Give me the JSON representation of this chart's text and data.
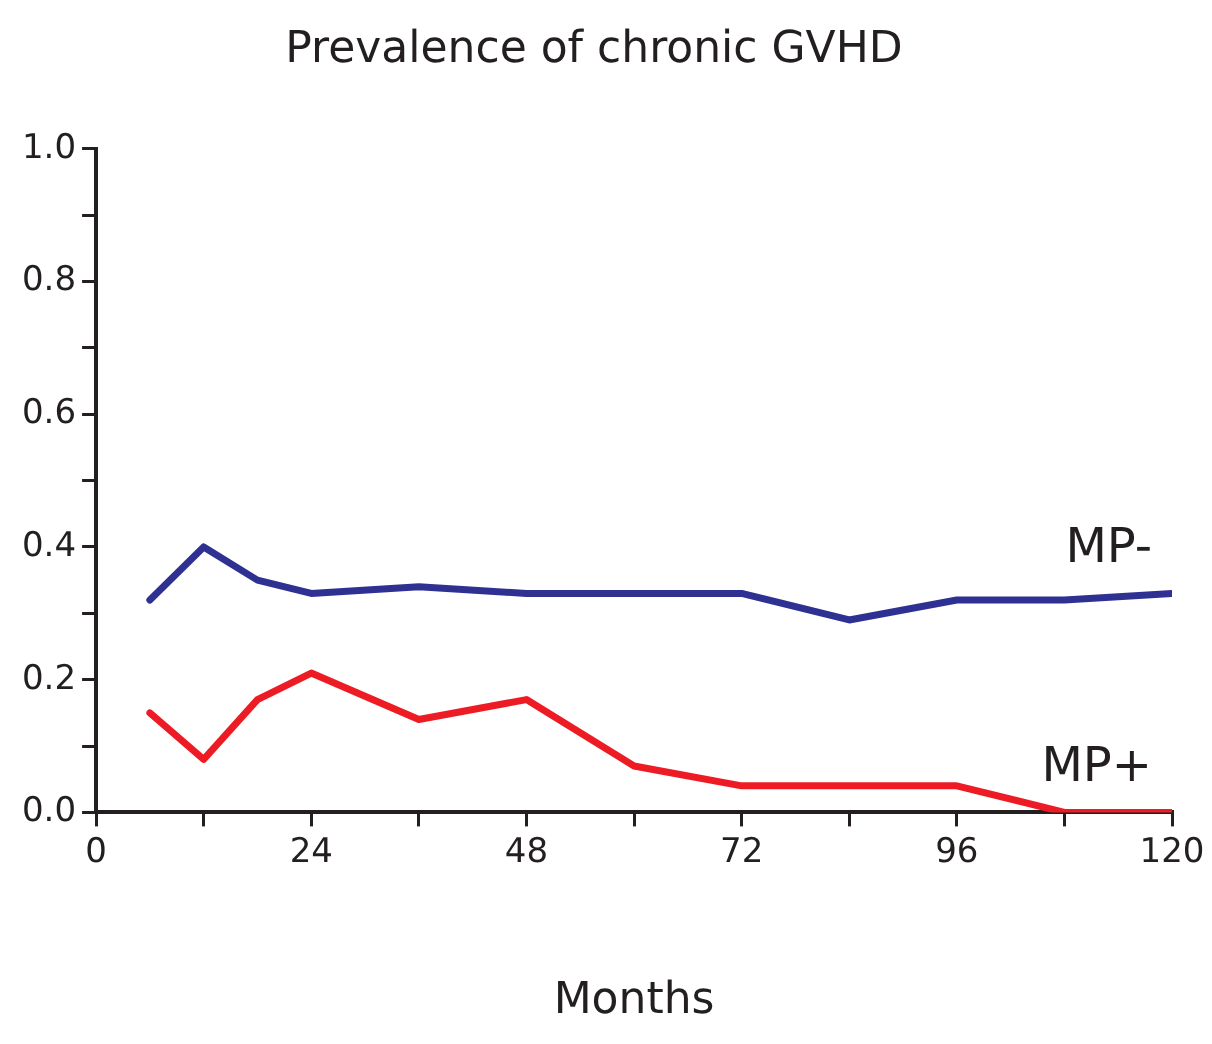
{
  "chart_data": {
    "type": "line",
    "title": "Prevalence of chronic GVHD",
    "xlabel": "Months",
    "x": [
      6,
      12,
      18,
      24,
      36,
      48,
      60,
      72,
      84,
      96,
      108,
      120
    ],
    "series": [
      {
        "name": "MP-",
        "color": "#2e3192",
        "x": [
          6,
          12,
          18,
          24,
          36,
          48,
          72,
          84,
          96,
          108,
          120
        ],
        "values": [
          0.32,
          0.4,
          0.35,
          0.33,
          0.34,
          0.33,
          0.33,
          0.29,
          0.32,
          0.32,
          0.33
        ]
      },
      {
        "name": "MP+",
        "color": "#ed1c24",
        "values": [
          0.15,
          0.08,
          0.17,
          0.21,
          0.14,
          0.17,
          0.07,
          0.04,
          0.04,
          0.04,
          0,
          0
        ]
      }
    ],
    "xlim": [
      0,
      120
    ],
    "xticks": [
      0,
      {
        "value": 12,
        "label": null
      },
      24,
      {
        "value": 36,
        "label": null
      },
      48,
      {
        "value": 60,
        "label": null
      },
      72,
      {
        "value": 84,
        "label": null
      },
      96,
      {
        "value": 108,
        "label": null
      },
      120
    ],
    "ylim": [
      0,
      1
    ],
    "yticks": [
      {
        "value": 0,
        "label": "0.0"
      },
      {
        "value": 0.1,
        "label": null
      },
      0.2,
      {
        "value": 0.3,
        "label": null
      },
      0.4,
      {
        "value": 0.5,
        "label": null
      },
      0.6,
      {
        "value": 0.7,
        "label": null
      },
      0.8,
      {
        "value": 0.9,
        "label": null
      },
      {
        "value": 1,
        "label": "1.0"
      }
    ],
    "grid": false,
    "legend": false,
    "marker": "none",
    "line_style": "solid"
  }
}
